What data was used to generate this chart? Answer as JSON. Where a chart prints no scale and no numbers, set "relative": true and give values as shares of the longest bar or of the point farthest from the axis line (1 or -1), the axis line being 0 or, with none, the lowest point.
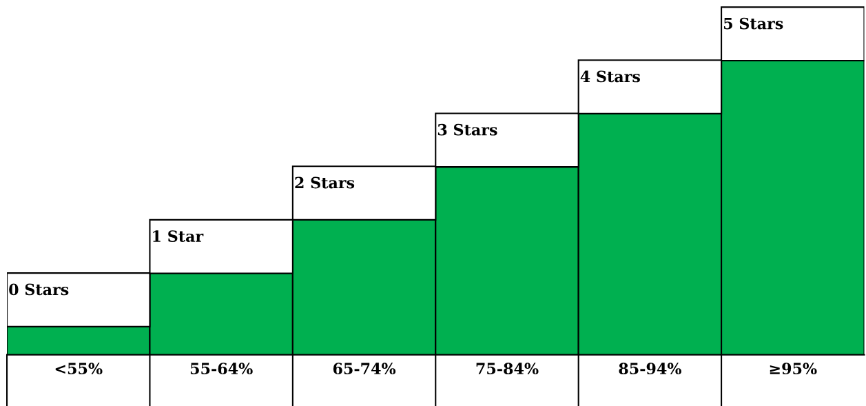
{
  "chart_data": {
    "type": "bar",
    "relative": true,
    "categories": [
      "<55%",
      "55-64%",
      "65-74%",
      "75-84%",
      "85-94%",
      "≥95%"
    ],
    "values": [
      0.096,
      0.277,
      0.459,
      0.639,
      0.82,
      1.0
    ],
    "color": "#00b050",
    "annotations": [
      {
        "text": "0 Stars",
        "x": "<55%",
        "y": 0.096
      },
      {
        "text": "1 Star",
        "x": "55-64%",
        "y": 0.277
      },
      {
        "text": "2 Stars",
        "x": "65-74%",
        "y": 0.459
      },
      {
        "text": "3 Stars",
        "x": "75-84%",
        "y": 0.639
      },
      {
        "text": "4 Stars",
        "x": "85-94%",
        "y": 0.82
      },
      {
        "text": "5 Stars",
        "x": "≥95%",
        "y": 1.0
      }
    ],
    "grid": false,
    "legend": false
  }
}
